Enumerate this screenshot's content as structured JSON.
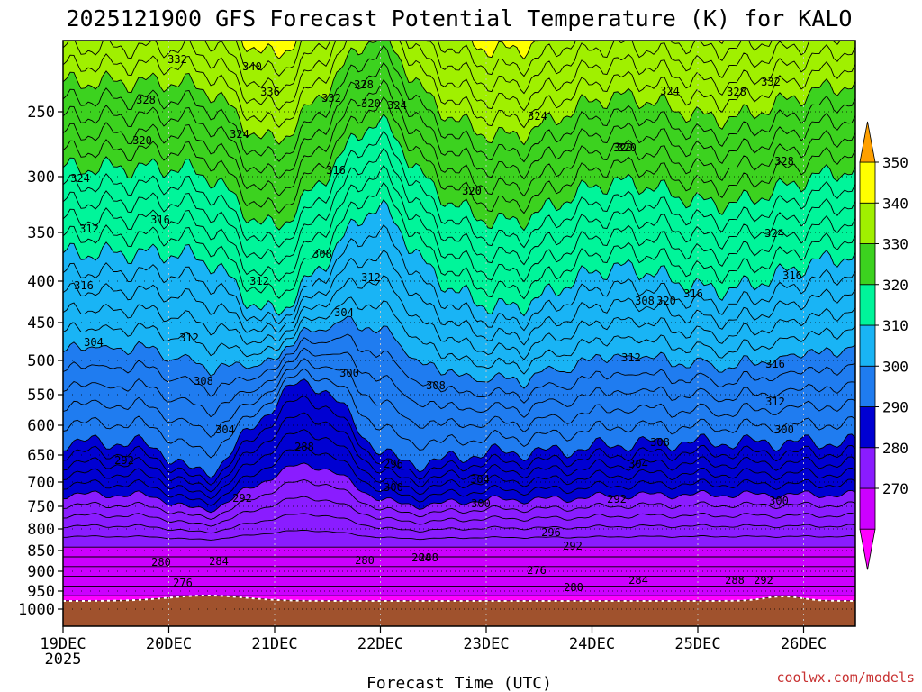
{
  "chart_data": {
    "type": "heatmap",
    "title": "2025121900 GFS Forecast Potential Temperature (K) for KALO",
    "xlabel": "Forecast Time (UTC)",
    "ylabel": "",
    "x_ticks": [
      "19DEC",
      "20DEC",
      "21DEC",
      "22DEC",
      "23DEC",
      "24DEC",
      "25DEC",
      "26DEC"
    ],
    "x_ticks_sub": [
      "2025",
      "",
      "",
      "",
      "",
      "",
      "",
      ""
    ],
    "y_ticks": [
      "250",
      "300",
      "350",
      "400",
      "450",
      "500",
      "550",
      "600",
      "650",
      "700",
      "750",
      "800",
      "850",
      "900",
      "950",
      "1000"
    ],
    "y_axis": {
      "scale": "pressure (hPa, decreasing upward)",
      "min": 1000,
      "max": 200
    },
    "colorbar": {
      "levels": [
        270,
        280,
        290,
        300,
        310,
        320,
        330,
        340,
        350
      ],
      "labels": [
        "350",
        "340",
        "330",
        "320",
        "310",
        "300",
        "290",
        "280",
        "270"
      ],
      "colors": [
        "#ff00ff",
        "#cc00ff",
        "#8a1cff",
        "#0000d2",
        "#1f7cf0",
        "#19b4f5",
        "#00f59a",
        "#3cd21f",
        "#a0f000",
        "#ffff00",
        "#ffa000"
      ]
    },
    "contour_labels": {
      "levels": [
        "332",
        "340",
        "328",
        "336",
        "332",
        "328",
        "320",
        "324",
        "324",
        "324",
        "328",
        "332",
        "320",
        "324",
        "320",
        "328",
        "324",
        "316",
        "320",
        "316",
        "312",
        "324",
        "308",
        "312",
        "312",
        "316",
        "308",
        "304",
        "312",
        "304",
        "312",
        "300",
        "308",
        "308",
        "304",
        "316",
        "312",
        "300",
        "288",
        "292",
        "296",
        "308",
        "304",
        "292",
        "304",
        "300",
        "300",
        "292",
        "296",
        "292",
        "284",
        "280",
        "280",
        "284",
        "288",
        "276",
        "284",
        "276",
        "280",
        "288",
        "292",
        "300",
        "320",
        "320",
        "316",
        "316",
        "320"
      ]
    },
    "grid": "dotted",
    "legend": "right colorbar"
  },
  "credit": "coolwx.com/models"
}
